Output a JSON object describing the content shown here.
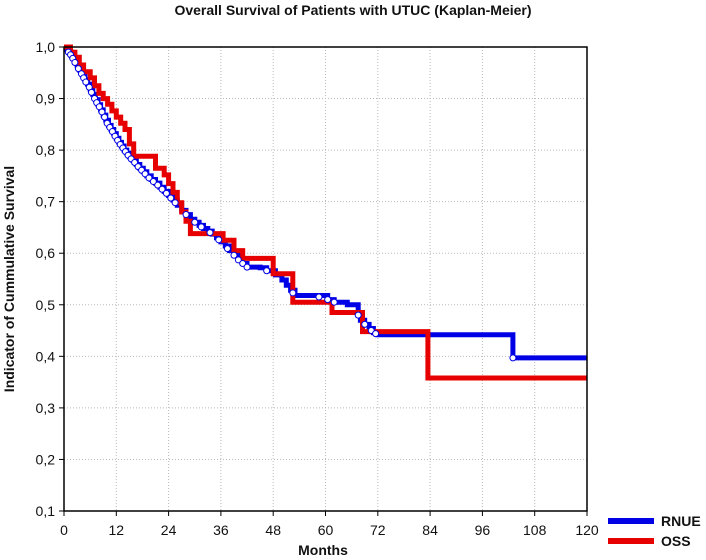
{
  "chart_data": {
    "type": "line",
    "title": "Overall Survival of Patients with UTUC (Kaplan-Meier)",
    "xlabel": "Months",
    "ylabel": "Indicator of Cummulative Survival",
    "xlim": [
      0,
      120
    ],
    "ylim": [
      0.1,
      1.0
    ],
    "x_ticks": [
      0,
      12,
      24,
      36,
      48,
      60,
      72,
      84,
      96,
      108,
      120
    ],
    "x_tick_labels": [
      "0",
      "12",
      "24",
      "36",
      "48",
      "60",
      "72",
      "84",
      "96",
      "108",
      "120"
    ],
    "y_ticks": [
      0.1,
      0.2,
      0.3,
      0.4,
      0.5,
      0.6,
      0.7,
      0.8,
      0.9,
      1.0
    ],
    "y_tick_labels": [
      "0,1",
      "0,2",
      "0,3",
      "0,4",
      "0,5",
      "0,6",
      "0,7",
      "0,8",
      "0,9",
      "1,0"
    ],
    "grid": true,
    "legend_position": "bottom-right",
    "series": [
      {
        "name": "RNUE",
        "color": "#0000e6",
        "step_points": [
          [
            0,
            1.0
          ],
          [
            0.6,
            0.995
          ],
          [
            1.2,
            0.99
          ],
          [
            1.8,
            0.982
          ],
          [
            2.4,
            0.974
          ],
          [
            3,
            0.965
          ],
          [
            3.6,
            0.955
          ],
          [
            4.2,
            0.946
          ],
          [
            4.8,
            0.937
          ],
          [
            5.4,
            0.928
          ],
          [
            6,
            0.918
          ],
          [
            6.6,
            0.908
          ],
          [
            7.2,
            0.898
          ],
          [
            7.8,
            0.888
          ],
          [
            8.4,
            0.878
          ],
          [
            9,
            0.868
          ],
          [
            9.6,
            0.858
          ],
          [
            10.2,
            0.848
          ],
          [
            10.8,
            0.84
          ],
          [
            11.4,
            0.832
          ],
          [
            12,
            0.823
          ],
          [
            12.6,
            0.815
          ],
          [
            13.2,
            0.808
          ],
          [
            13.8,
            0.8
          ],
          [
            14.4,
            0.794
          ],
          [
            15,
            0.787
          ],
          [
            15.8,
            0.78
          ],
          [
            16.6,
            0.772
          ],
          [
            17.4,
            0.765
          ],
          [
            18.2,
            0.758
          ],
          [
            19,
            0.75
          ],
          [
            20,
            0.743
          ],
          [
            21,
            0.736
          ],
          [
            22,
            0.728
          ],
          [
            23,
            0.72
          ],
          [
            24,
            0.712
          ],
          [
            25,
            0.703
          ],
          [
            26,
            0.693
          ],
          [
            27,
            0.683
          ],
          [
            28,
            0.675
          ],
          [
            29,
            0.666
          ],
          [
            30,
            0.66
          ],
          [
            31,
            0.654
          ],
          [
            32,
            0.648
          ],
          [
            33,
            0.643
          ],
          [
            34,
            0.637
          ],
          [
            35,
            0.63
          ],
          [
            36,
            0.622
          ],
          [
            37,
            0.614
          ],
          [
            38,
            0.605
          ],
          [
            39,
            0.596
          ],
          [
            40,
            0.587
          ],
          [
            41,
            0.58
          ],
          [
            42,
            0.573
          ],
          [
            45,
            0.572
          ],
          [
            46.5,
            0.566
          ],
          [
            48.5,
            0.558
          ],
          [
            50,
            0.548
          ],
          [
            51,
            0.538
          ],
          [
            52,
            0.528
          ],
          [
            53,
            0.518
          ],
          [
            60.5,
            0.51
          ],
          [
            62,
            0.505
          ],
          [
            65,
            0.5
          ],
          [
            67.5,
            0.48
          ],
          [
            68,
            0.47
          ],
          [
            69,
            0.462
          ],
          [
            70,
            0.454
          ],
          [
            71,
            0.446
          ],
          [
            72,
            0.442
          ],
          [
            103,
            0.397
          ],
          [
            120,
            0.397
          ]
        ],
        "censor_marks": [
          [
            1,
            0.99
          ],
          [
            1.5,
            0.985
          ],
          [
            2,
            0.978
          ],
          [
            2.5,
            0.97
          ],
          [
            3.3,
            0.958
          ],
          [
            4,
            0.948
          ],
          [
            4.5,
            0.94
          ],
          [
            5,
            0.932
          ],
          [
            5.8,
            0.922
          ],
          [
            6.3,
            0.912
          ],
          [
            7,
            0.9
          ],
          [
            7.5,
            0.892
          ],
          [
            8.1,
            0.884
          ],
          [
            8.7,
            0.874
          ],
          [
            9.3,
            0.864
          ],
          [
            9.9,
            0.852
          ],
          [
            10.5,
            0.844
          ],
          [
            11.1,
            0.836
          ],
          [
            11.7,
            0.827
          ],
          [
            12.3,
            0.819
          ],
          [
            12.9,
            0.811
          ],
          [
            13.5,
            0.804
          ],
          [
            14.1,
            0.797
          ],
          [
            14.7,
            0.79
          ],
          [
            15.4,
            0.783
          ],
          [
            16.2,
            0.776
          ],
          [
            17,
            0.768
          ],
          [
            17.8,
            0.761
          ],
          [
            18.6,
            0.754
          ],
          [
            19.5,
            0.746
          ],
          [
            20.5,
            0.739
          ],
          [
            21.5,
            0.732
          ],
          [
            22.5,
            0.724
          ],
          [
            23.5,
            0.716
          ],
          [
            24.5,
            0.707
          ],
          [
            25.5,
            0.698
          ],
          [
            28,
            0.675
          ],
          [
            30,
            0.66
          ],
          [
            31.5,
            0.651
          ],
          [
            33.5,
            0.64
          ],
          [
            35.5,
            0.626
          ],
          [
            37.5,
            0.609
          ],
          [
            39,
            0.596
          ],
          [
            40,
            0.587
          ],
          [
            41,
            0.58
          ],
          [
            42,
            0.573
          ],
          [
            46.5,
            0.566
          ],
          [
            52.5,
            0.523
          ],
          [
            58.5,
            0.515
          ],
          [
            60.5,
            0.51
          ],
          [
            62,
            0.505
          ],
          [
            67.5,
            0.48
          ],
          [
            69,
            0.462
          ],
          [
            70.5,
            0.45
          ],
          [
            71.5,
            0.444
          ],
          [
            103,
            0.397
          ]
        ]
      },
      {
        "name": "OSS",
        "color": "#e60000",
        "step_points": [
          [
            0,
            1.0
          ],
          [
            1.5,
            0.99
          ],
          [
            2.5,
            0.98
          ],
          [
            3.5,
            0.965
          ],
          [
            4.5,
            0.952
          ],
          [
            6,
            0.94
          ],
          [
            7,
            0.925
          ],
          [
            8,
            0.91
          ],
          [
            9,
            0.9
          ],
          [
            10,
            0.889
          ],
          [
            11,
            0.876
          ],
          [
            12,
            0.864
          ],
          [
            13,
            0.852
          ],
          [
            14,
            0.84
          ],
          [
            15,
            0.812
          ],
          [
            16,
            0.788
          ],
          [
            21,
            0.765
          ],
          [
            23,
            0.752
          ],
          [
            24,
            0.735
          ],
          [
            25,
            0.718
          ],
          [
            26,
            0.698
          ],
          [
            27,
            0.68
          ],
          [
            28,
            0.662
          ],
          [
            29,
            0.638
          ],
          [
            36.5,
            0.625
          ],
          [
            39,
            0.605
          ],
          [
            41,
            0.59
          ],
          [
            48,
            0.56
          ],
          [
            52.5,
            0.505
          ],
          [
            61.5,
            0.485
          ],
          [
            68.5,
            0.448
          ],
          [
            83.5,
            0.358
          ],
          [
            120,
            0.358
          ]
        ]
      }
    ]
  }
}
